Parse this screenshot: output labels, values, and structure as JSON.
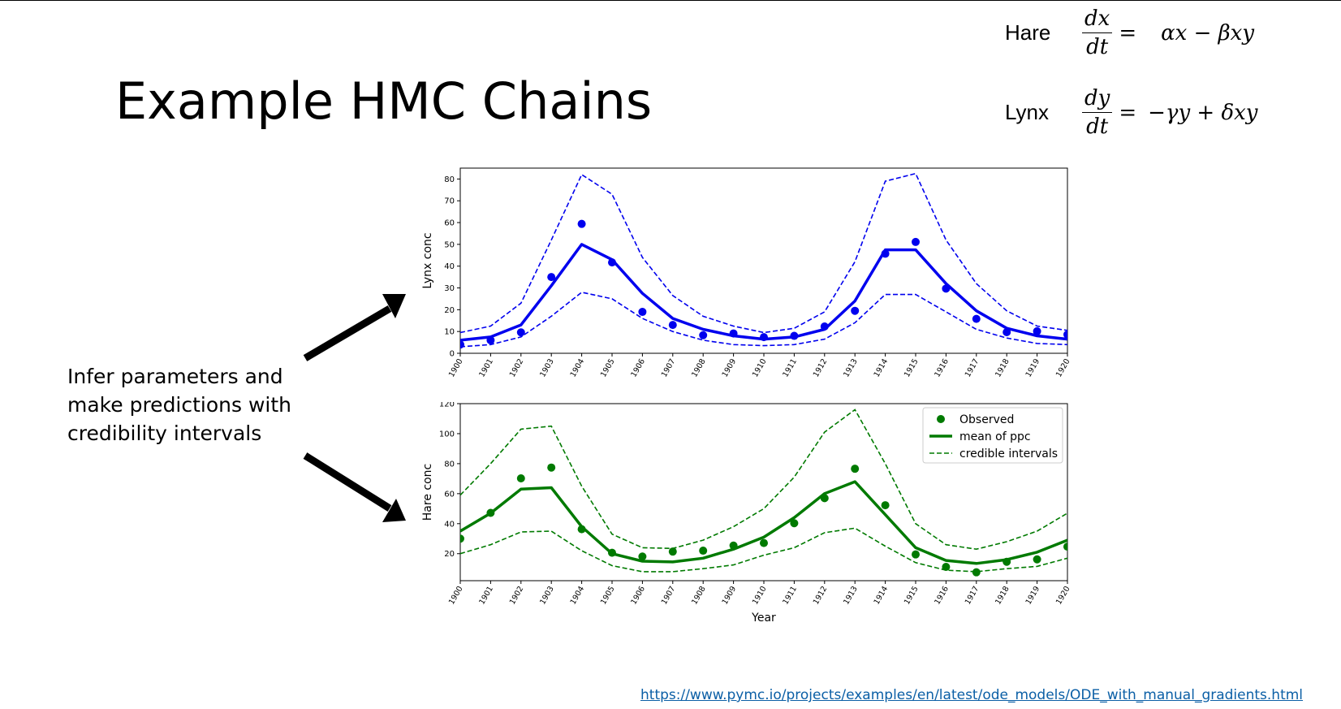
{
  "slide": {
    "title": "Example HMC Chains",
    "side_text_lines": [
      "Infer parameters and",
      "make predictions with",
      "credibility intervals"
    ],
    "link": "https://www.pymc.io/projects/examples/en/latest/ode_models/ODE_with_manual_gradients.html"
  },
  "equations": {
    "hare": {
      "name": "Hare",
      "num": "dx",
      "den": "dt",
      "eq": "=",
      "rhs": "αx − βxy"
    },
    "lynx": {
      "name": "Lynx",
      "num": "dy",
      "den": "dt",
      "eq": "=",
      "rhs": "−γy + δxy"
    }
  },
  "colors": {
    "lynx": "#0000ee",
    "hare": "#007a00",
    "arrow": "#000000",
    "link": "#0b5fa6"
  },
  "chart_data": [
    {
      "type": "line",
      "ylabel": "Lynx conc",
      "xlabel": "",
      "x": [
        1900,
        1901,
        1902,
        1903,
        1904,
        1905,
        1906,
        1907,
        1908,
        1909,
        1910,
        1911,
        1912,
        1913,
        1914,
        1915,
        1916,
        1917,
        1918,
        1919,
        1920
      ],
      "ylim": [
        0,
        85
      ],
      "yticks": [
        0,
        10,
        20,
        30,
        40,
        50,
        60,
        70,
        80
      ],
      "observed": [
        4,
        6,
        9.6,
        35,
        59.4,
        41.7,
        19,
        13,
        8.3,
        9.1,
        7.4,
        8,
        12.3,
        19.5,
        45.7,
        51.1,
        29.7,
        15.8,
        9.7,
        10.1,
        8.6
      ],
      "mean": [
        6,
        7.5,
        13,
        31,
        50,
        43,
        27.5,
        16,
        11,
        8,
        6.5,
        7.5,
        11,
        24,
        47.5,
        47.5,
        32,
        19.5,
        11.5,
        8,
        6.5
      ],
      "upper": [
        9.5,
        12.5,
        23,
        52,
        82,
        73,
        44,
        26.5,
        17,
        12.5,
        9.5,
        11.5,
        19,
        42,
        79,
        82.5,
        52,
        32,
        19.5,
        12.5,
        10.5
      ],
      "lower": [
        3,
        4,
        7.5,
        17,
        28,
        25,
        16,
        10,
        6,
        4,
        3.5,
        4,
        6.5,
        14,
        27,
        27,
        19,
        11,
        7,
        4.5,
        4
      ],
      "grid": false,
      "legend": null
    },
    {
      "type": "line",
      "ylabel": "Hare conc",
      "xlabel": "Year",
      "x": [
        1900,
        1901,
        1902,
        1903,
        1904,
        1905,
        1906,
        1907,
        1908,
        1909,
        1910,
        1911,
        1912,
        1913,
        1914,
        1915,
        1916,
        1917,
        1918,
        1919,
        1920
      ],
      "ylim": [
        2,
        120
      ],
      "yticks": [
        20,
        40,
        60,
        80,
        100,
        120
      ],
      "observed": [
        30,
        47.2,
        70.2,
        77.4,
        36.3,
        20.6,
        18.1,
        21.4,
        22,
        25.4,
        27.1,
        40.3,
        57,
        76.6,
        52.3,
        19.5,
        11.2,
        7.6,
        14.6,
        16.2,
        24.7
      ],
      "mean": [
        35,
        47,
        63,
        64,
        38,
        20,
        15,
        14.5,
        17,
        23,
        31,
        44,
        60,
        68,
        46,
        24,
        15.5,
        13.5,
        16,
        21,
        29
      ],
      "upper": [
        59,
        80,
        103,
        105,
        65,
        33,
        24,
        23.5,
        29,
        38,
        50,
        71,
        101,
        116,
        80,
        40,
        26,
        23,
        28,
        35,
        47
      ],
      "lower": [
        20,
        26,
        34.5,
        35,
        22,
        12,
        8,
        8,
        10,
        12.5,
        19,
        24,
        34,
        37,
        25,
        14,
        9,
        8,
        10,
        11.5,
        17
      ],
      "grid": false,
      "legend": {
        "position": "upper-right",
        "entries": [
          "Observed",
          "mean of ppc",
          "credible intervals"
        ]
      }
    }
  ]
}
